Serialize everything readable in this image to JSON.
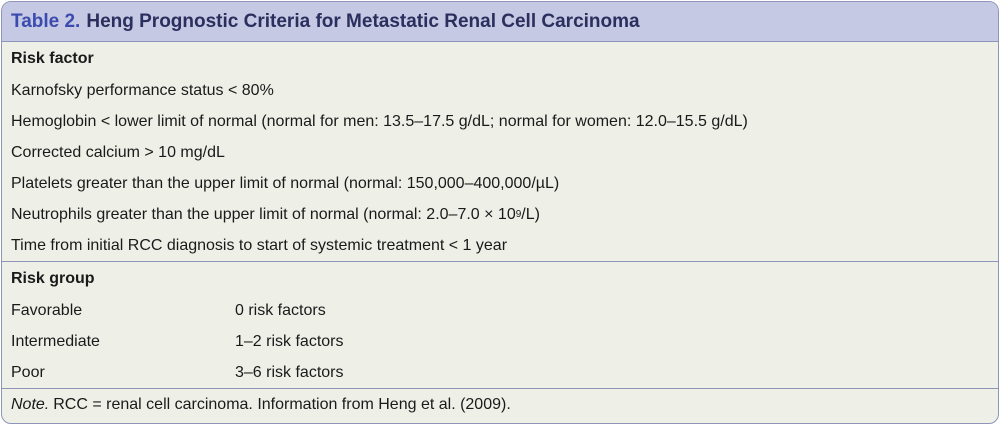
{
  "title": {
    "label": "Table 2.",
    "text": "Heng Prognostic Criteria for Metastatic Renal Cell Carcinoma"
  },
  "risk_factor": {
    "heading": "Risk factor",
    "items": [
      "Karnofsky performance status < 80%",
      "Hemoglobin < lower limit of normal (normal for men: 13.5–17.5 g/dL; normal for women: 12.0–15.5 g/dL)",
      "Corrected calcium > 10 mg/dL",
      "Platelets greater than the upper limit of normal (normal: 150,000–400,000/µL)",
      "Neutrophils greater than the upper limit of normal (normal: 2.0–7.0 × 10",
      "Time from initial RCC diagnosis to start of systemic treatment < 1 year"
    ],
    "neutrophils_exponent": "9",
    "neutrophils_suffix": "/L)"
  },
  "risk_group": {
    "heading": "Risk group",
    "rows": [
      {
        "name": "Favorable",
        "value": "0 risk factors"
      },
      {
        "name": "Intermediate",
        "value": "1–2 risk factors"
      },
      {
        "name": "Poor",
        "value": "3–6 risk factors"
      }
    ]
  },
  "note": {
    "label": "Note.",
    "text": "RCC = renal cell carcinoma. Information from Heng et al. (2009)."
  }
}
